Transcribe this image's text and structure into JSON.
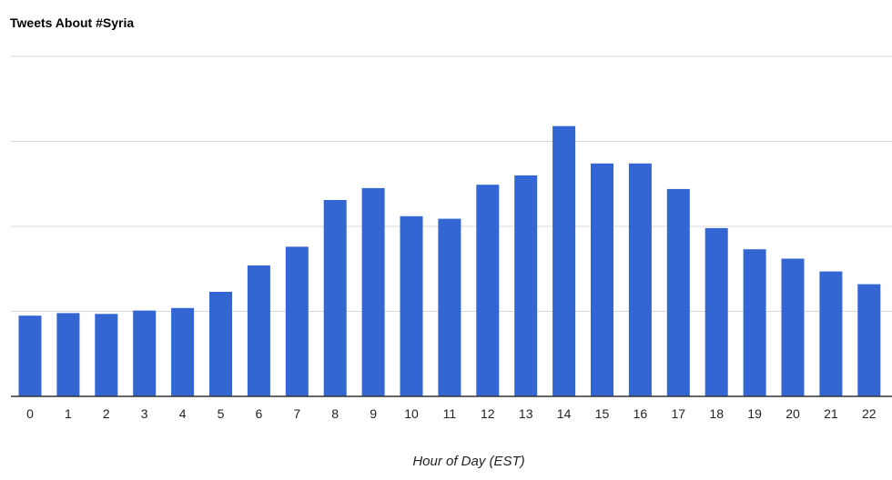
{
  "chart_data": {
    "type": "bar",
    "title": "Tweets About #Syria",
    "xlabel": "Hour of Day (EST)",
    "ylabel": "",
    "categories": [
      "0",
      "1",
      "2",
      "3",
      "4",
      "5",
      "6",
      "7",
      "8",
      "9",
      "10",
      "11",
      "12",
      "13",
      "14",
      "15",
      "16",
      "17",
      "18",
      "19",
      "20",
      "21",
      "22"
    ],
    "values": [
      9.5,
      9.8,
      9.7,
      10.1,
      10.4,
      12.3,
      15.4,
      17.6,
      23.1,
      24.5,
      21.2,
      20.9,
      24.9,
      26.0,
      31.8,
      27.4,
      27.4,
      24.4,
      19.8,
      17.3,
      16.2,
      14.7,
      13.2
    ],
    "ylim": [
      0,
      40
    ],
    "grid": true,
    "colors": {
      "bar": "#3366d2",
      "grid": "#d9d9d9",
      "axis": "#333333"
    }
  }
}
